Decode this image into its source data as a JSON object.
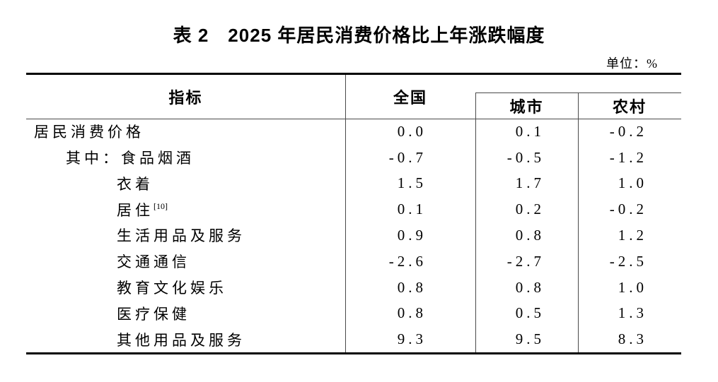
{
  "page": {
    "title": "表 2　2025 年居民消费价格比上年涨跌幅度",
    "unit_label": "单位：%"
  },
  "table": {
    "columns": {
      "indicator": "指标",
      "national": "全国",
      "urban": "城市",
      "rural": "农村"
    },
    "rows": [
      {
        "label": "居民消费价格",
        "sup": "",
        "indent": 0,
        "national": "0.0",
        "urban": "0.1",
        "rural": "-0.2"
      },
      {
        "label": "其中：食品烟酒",
        "sup": "",
        "indent": 1,
        "national": "-0.7",
        "urban": "-0.5",
        "rural": "-1.2"
      },
      {
        "label": "衣着",
        "sup": "",
        "indent": 2,
        "national": "1.5",
        "urban": "1.7",
        "rural": "1.0"
      },
      {
        "label": "居住",
        "sup": "[10]",
        "indent": 2,
        "national": "0.1",
        "urban": "0.2",
        "rural": "-0.2"
      },
      {
        "label": "生活用品及服务",
        "sup": "",
        "indent": 2,
        "national": "0.9",
        "urban": "0.8",
        "rural": "1.2"
      },
      {
        "label": "交通通信",
        "sup": "",
        "indent": 2,
        "national": "-2.6",
        "urban": "-2.7",
        "rural": "-2.5"
      },
      {
        "label": "教育文化娱乐",
        "sup": "",
        "indent": 2,
        "national": "0.8",
        "urban": "0.8",
        "rural": "1.0"
      },
      {
        "label": "医疗保健",
        "sup": "",
        "indent": 2,
        "national": "0.8",
        "urban": "0.5",
        "rural": "1.3"
      },
      {
        "label": "其他用品及服务",
        "sup": "",
        "indent": 2,
        "national": "9.3",
        "urban": "9.5",
        "rural": "8.3"
      }
    ]
  },
  "colors": {
    "background": "#ffffff",
    "text": "#000000",
    "line_thick": "#000000",
    "line_thin": "#4a4a4a"
  }
}
